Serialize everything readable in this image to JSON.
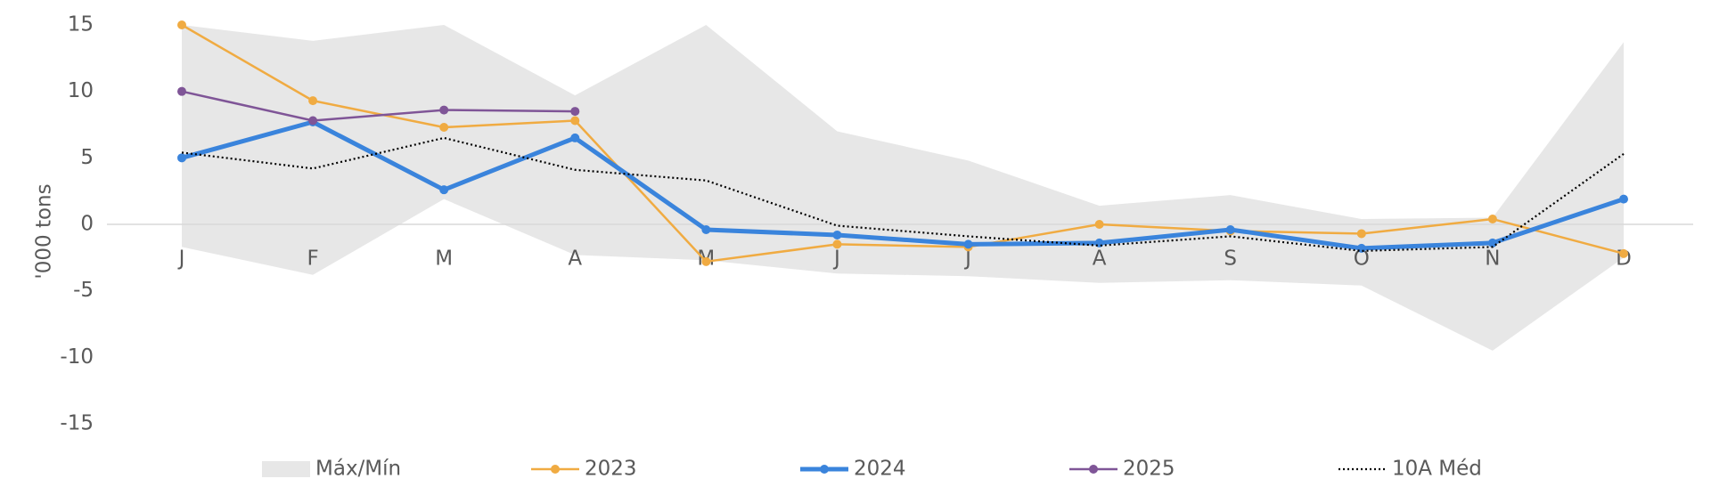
{
  "chart_data": {
    "type": "line",
    "y_label": "'000 tons",
    "categories": [
      "J",
      "F",
      "M",
      "A",
      "M",
      "J",
      "J",
      "A",
      "S",
      "O",
      "N",
      "D"
    ],
    "ylim": [
      -15,
      15
    ],
    "yticks": [
      -15,
      -10,
      -5,
      0,
      5,
      10,
      15
    ],
    "series": [
      {
        "name": "Máx/Mín",
        "color": "#e7e7e7",
        "kind": "band",
        "upper": [
          15,
          13.8,
          15,
          9.7,
          15,
          7,
          4.8,
          1.4,
          2.2,
          0.4,
          0.5,
          13.7
        ],
        "lower": [
          -1.7,
          -3.8,
          1.9,
          -2.3,
          -2.7,
          -3.7,
          -3.9,
          -4.4,
          -4.2,
          -4.6,
          -9.5,
          -2.5
        ]
      },
      {
        "name": "2023",
        "color": "#f0ab42",
        "width": 2.5,
        "marker": true,
        "values": [
          15,
          9.3,
          7.3,
          7.8,
          -2.8,
          -1.5,
          -1.7,
          0,
          -0.5,
          -0.7,
          0.4,
          -2.2
        ]
      },
      {
        "name": "2024",
        "color": "#3a84dc",
        "width": 5,
        "marker": true,
        "values": [
          5,
          7.7,
          2.6,
          6.5,
          -0.4,
          -0.8,
          -1.5,
          -1.4,
          -0.4,
          -1.8,
          -1.4,
          1.9
        ]
      },
      {
        "name": "2025",
        "color": "#7f5597",
        "width": 2.5,
        "marker": true,
        "values": [
          10,
          7.8,
          8.6,
          8.5,
          null,
          null,
          null,
          null,
          null,
          null,
          null,
          null
        ]
      },
      {
        "name": "10A Méd",
        "color": "#000000",
        "width": 2.2,
        "dashed": true,
        "values": [
          5.4,
          4.2,
          6.5,
          4.1,
          3.3,
          -0.1,
          -0.9,
          -1.6,
          -0.9,
          -2,
          -1.7,
          5.3
        ]
      }
    ]
  }
}
